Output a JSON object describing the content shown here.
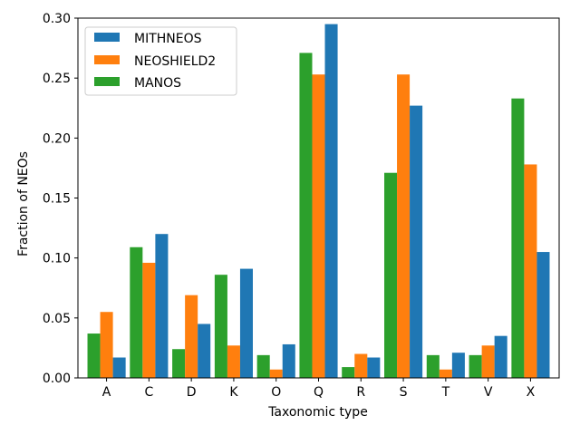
{
  "chart_data": {
    "type": "bar",
    "title": "",
    "xlabel": "Taxonomic type",
    "ylabel": "Fraction of NEOs",
    "ylim": [
      0,
      0.3
    ],
    "yticks": [
      0.0,
      0.05,
      0.1,
      0.15,
      0.2,
      0.25,
      0.3
    ],
    "ytick_labels": [
      "0.00",
      "0.05",
      "0.10",
      "0.15",
      "0.20",
      "0.25",
      "0.30"
    ],
    "categories": [
      "A",
      "C",
      "D",
      "K",
      "O",
      "Q",
      "R",
      "S",
      "T",
      "V",
      "X"
    ],
    "legend_position": "top-left",
    "legend": [
      "MITHNEOS",
      "NEOSHIELD2",
      "MANOS"
    ],
    "series": [
      {
        "name": "MANOS",
        "color": "#2ca02c",
        "values": [
          0.037,
          0.109,
          0.024,
          0.086,
          0.019,
          0.271,
          0.009,
          0.171,
          0.019,
          0.019,
          0.233
        ]
      },
      {
        "name": "NEOSHIELD2",
        "color": "#ff7f0e",
        "values": [
          0.055,
          0.096,
          0.069,
          0.027,
          0.007,
          0.253,
          0.02,
          0.253,
          0.007,
          0.027,
          0.178
        ]
      },
      {
        "name": "MITHNEOS",
        "color": "#1f77b4",
        "values": [
          0.017,
          0.12,
          0.045,
          0.091,
          0.028,
          0.295,
          0.017,
          0.227,
          0.021,
          0.035,
          0.105
        ]
      }
    ]
  }
}
